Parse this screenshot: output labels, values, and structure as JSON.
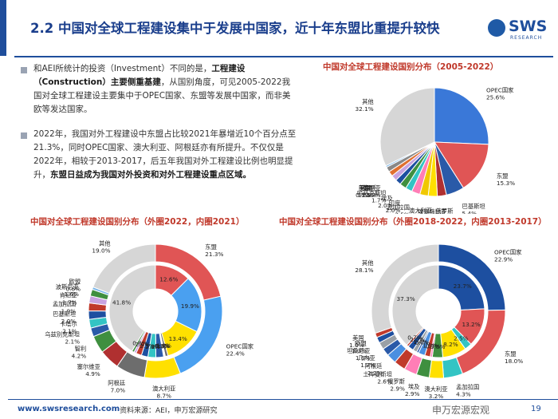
{
  "header": {
    "title": "2.2 中国对全球工程建设集中于发展中国家，近十年东盟比重提升较快",
    "logo_main": "SWS",
    "logo_sub": "RESEARCH"
  },
  "text": {
    "p1_a": "和AEI所统计的投资（Investment）不同的是，",
    "p1_b": "工程建设（Construction）主要侧重基建",
    "p1_c": "，从国别角度，可见2005-2022我国对全球工程建设主要集中于OPEC国家、东盟等发展中国家，而非美欧等发达国家。",
    "p2_a": "2022年，我国对外工程建设中东盟占比较2021年暴增近10个百分点至21.3%，同时OPEC国家、澳大利亚、阿根廷亦有所提升。不仅仅是2022年，相较于2013-2017，后五年我国对外工程建设比例也明显提升，",
    "p2_b": "东盟日益成为我国对外投资和对外工程建设重点区域。"
  },
  "colors": {
    "brand": "#1f4e9c",
    "title_red": "#c0392b",
    "palette": [
      "#4a8fe0",
      "#e05555",
      "#c0392b",
      "#2f5fa8",
      "#b03030",
      "#3a6fc0",
      "#ffe000",
      "#ff7eb6",
      "#33c4c4",
      "#3f8f3f",
      "#d0d0d0",
      "#1d4fa0",
      "#888888",
      "#77b5e8",
      "#c8a3e0",
      "#e0c030"
    ]
  },
  "chart_data": [
    {
      "id": "chart1",
      "type": "pie",
      "title": "中国对全球工程建设国别分布（2005-2022）",
      "slices": [
        {
          "name": "OPEC国家",
          "value": 25.6,
          "label": "OPEC国家\n25.6%",
          "color": "#3a78d8"
        },
        {
          "name": "东盟",
          "value": 15.3,
          "label": "东盟\n15.3%",
          "color": "#e05555"
        },
        {
          "name": "巴基斯坦",
          "value": 5.4,
          "label": "巴基斯坦\n5.4%",
          "color": "#2a5aa8"
        },
        {
          "name": "俄罗斯",
          "value": 2.7,
          "label": "俄罗斯\n2.7%",
          "color": "#b03030"
        },
        {
          "name": "埃塞俄比亚",
          "value": 2.7,
          "label": "埃塞俄比亚\n2.7%",
          "color": "#ffe000"
        },
        {
          "name": "澳大利亚",
          "value": 2.5,
          "label": "澳大利亚\n2.5%",
          "color": "#f0c800"
        },
        {
          "name": "孟加拉国",
          "value": 2.5,
          "label": "孟加拉国\n2.5%",
          "color": "#ff7eb6"
        },
        {
          "name": "印度",
          "value": 2.0,
          "label": "印度\n2.0%",
          "color": "#33c4c4"
        },
        {
          "name": "埃及",
          "value": 2.0,
          "label": "埃及\n2.0%",
          "color": "#3f8f3f"
        },
        {
          "name": "哈萨克斯坦",
          "value": 1.7,
          "label": "哈萨克斯坦\n1.7%",
          "color": "#1d4fa0"
        },
        {
          "name": "肯尼亚",
          "value": 1.7,
          "label": "肯尼亚\n1.7%",
          "color": "#c8a3e0"
        },
        {
          "name": "阿根廷",
          "value": 1.5,
          "label": "阿根廷\n1.5%",
          "color": "#e07030"
        },
        {
          "name": "欧盟",
          "value": 1.5,
          "label": "欧盟\n1.5%",
          "color": "#888888"
        },
        {
          "name": "美国",
          "value": 0.5,
          "label": "美国\n0.5%",
          "color": "#77b5e8"
        },
        {
          "name": "其他",
          "value": 32.1,
          "label": "其他\n32.1%",
          "color": "#d6d6d6"
        }
      ]
    },
    {
      "id": "chart2",
      "type": "donut",
      "title": "中国对全球工程建设国别分布（外圈2022，内圈2021）",
      "categories": [
        "东盟",
        "OPEC国家",
        "澳大利亚",
        "阿根廷",
        "塞尔维亚",
        "智利",
        "乌兹别克斯坦",
        "卡塔尔",
        "巴基斯坦",
        "孟加拉国",
        "肯尼亚",
        "波斯尼亚",
        "欧盟",
        "其他"
      ],
      "outer_2022": [
        21.3,
        22.4,
        8.7,
        7.0,
        4.9,
        4.2,
        2.1,
        2.1,
        2.0,
        1.9,
        1.7,
        1.6,
        0.6,
        19.0
      ],
      "inner_2021": [
        12.6,
        19.9,
        13.4,
        1.0,
        0.3,
        0.3,
        2.7,
        2.8,
        2.3,
        2.0,
        0.8,
        0.8,
        0.0,
        41.8
      ],
      "outer_labels": [
        "东盟\n21.3%",
        "OPEC国家\n22.4%",
        "澳大利亚\n8.7%",
        "阿根廷\n7.0%",
        "塞尔维亚\n4.9%",
        "智利\n4.2%",
        "乌兹别克斯坦\n2.1%",
        "卡塔尔\n2.1%",
        "巴基斯坦\n2.0%",
        "孟加拉国\n1.9%",
        "肯尼亚\n1.7%",
        "波斯尼亚\n1.6%",
        "欧盟\n0.6%",
        "其他\n19.0%"
      ],
      "inner_labels": [
        "12.6%",
        "19.9%",
        "13.4%",
        "1.0%",
        "0.3%",
        "0.3%",
        "2.7%",
        "2.8%",
        "2.3%",
        "2.0%",
        "0.8%",
        "",
        "",
        "41.8%"
      ],
      "colors": [
        "#e05555",
        "#4aa0f0",
        "#ffe000",
        "#6d6d6d",
        "#b03030",
        "#3f8f3f",
        "#2a5aa8",
        "#33c4c4",
        "#1d4fa0",
        "#c0392b",
        "#c8a3e0",
        "#3f8f3f",
        "#77b5e8",
        "#d6d6d6"
      ]
    },
    {
      "id": "chart3",
      "type": "donut",
      "title": "中国对全球工程建设国别分布（外圈2018-2022，内圈2013-2017）",
      "categories": [
        "OPEC国家",
        "东盟",
        "孟加拉国",
        "澳大利亚",
        "埃及",
        "俄罗斯",
        "土库曼斯坦",
        "阿根廷",
        "几内亚",
        "坦桑尼亚",
        "欧盟",
        "美国",
        "其他"
      ],
      "outer_2018_2022": [
        22.9,
        18.0,
        4.3,
        3.2,
        2.9,
        2.9,
        2.6,
        2.2,
        1.7,
        1.6,
        1.3,
        1.0,
        28.1
      ],
      "inner_2013_2017": [
        23.7,
        13.2,
        2.5,
        8.2,
        3.6,
        0.7,
        1.9,
        2.3,
        0.7,
        1.4,
        2.0,
        0.7,
        37.3
      ],
      "outer_labels": [
        "OPEC国家\n22.9%",
        "东盟\n18.0%",
        "孟加拉国\n4.3%",
        "澳大利亚\n3.2%",
        "埃及\n2.9%",
        "俄罗斯\n2.9%",
        "土库曼斯坦\n2.6%",
        "阿根廷\n2.2%",
        "几内亚\n1.7%",
        "坦桑尼亚\n1.6%",
        "欧盟\n1.3%",
        "美国\n1.0%",
        "其他\n28.1%"
      ],
      "inner_labels": [
        "23.7%",
        "13.2%",
        "2.5%",
        "8.2%",
        "3.6%",
        "0.7%",
        "1.9%",
        "",
        "0.7%",
        "1.4%",
        "2.0%",
        "0.7%",
        "37.3%"
      ],
      "colors": [
        "#1d4fa0",
        "#e05555",
        "#33c4c4",
        "#ffe000",
        "#3f8f3f",
        "#ff7eb6",
        "#c0392b",
        "#4a8fe0",
        "#2a5aa8",
        "#9aa0a6",
        "#1d4fa0",
        "#c0392b",
        "#d6d6d6"
      ]
    }
  ],
  "footer": {
    "url": "www.swsresearch.com",
    "source": "资料来源：AEI，申万宏源研究",
    "watermark": "申万宏源宏观",
    "page": "19"
  }
}
